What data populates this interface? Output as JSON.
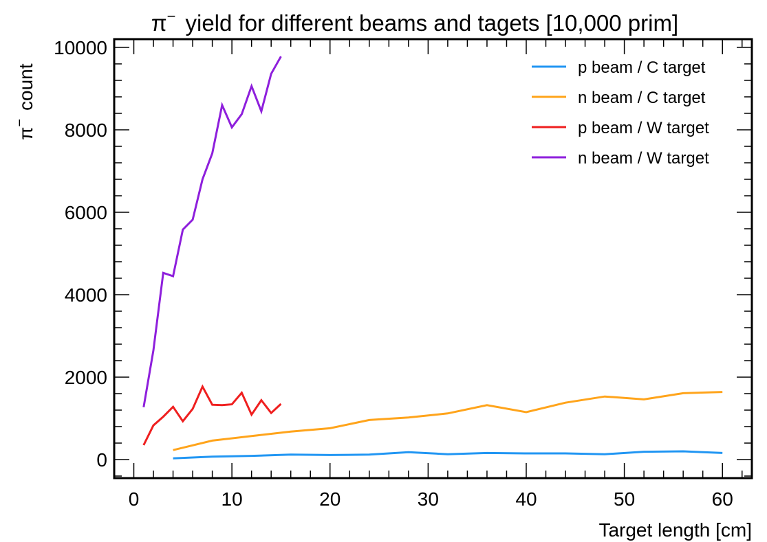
{
  "chart_data": {
    "type": "line",
    "title_prefix": "π",
    "title_sup": "−",
    "title_rest": "yield for different beams and tagets [10,000 prim]",
    "xlabel": "Target length [cm]",
    "ylabel_prefix": "π",
    "ylabel_sup": "−",
    "ylabel_rest": "count",
    "xlim": [
      -2,
      63
    ],
    "ylim": [
      -450,
      10200
    ],
    "xticks": [
      0,
      10,
      20,
      30,
      40,
      50,
      60
    ],
    "yticks": [
      0,
      2000,
      4000,
      6000,
      8000,
      10000
    ],
    "grid": false,
    "legend_position": "top-right",
    "series": [
      {
        "name": "p beam / C target",
        "color": "#2196f3",
        "x": [
          4,
          8,
          12,
          16,
          20,
          24,
          28,
          32,
          36,
          40,
          44,
          48,
          52,
          56,
          60
        ],
        "y": [
          30,
          70,
          90,
          120,
          110,
          120,
          180,
          130,
          160,
          150,
          150,
          130,
          190,
          200,
          160
        ]
      },
      {
        "name": "n beam / C target",
        "color": "#ffa41b",
        "x": [
          4,
          8,
          12,
          16,
          20,
          24,
          28,
          32,
          36,
          40,
          44,
          48,
          52,
          56,
          60
        ],
        "y": [
          230,
          460,
          570,
          680,
          760,
          960,
          1020,
          1120,
          1320,
          1150,
          1380,
          1530,
          1460,
          1610,
          1640
        ]
      },
      {
        "name": "p beam / W target",
        "color": "#ef1f1f",
        "x": [
          1,
          2,
          3,
          4,
          5,
          6,
          7,
          8,
          9,
          10,
          11,
          12,
          13,
          14,
          15
        ],
        "y": [
          350,
          830,
          1040,
          1280,
          930,
          1230,
          1770,
          1330,
          1320,
          1340,
          1620,
          1090,
          1440,
          1130,
          1350
        ]
      },
      {
        "name": "n beam / W target",
        "color": "#8e1fdc",
        "x": [
          1,
          2,
          3,
          4,
          5,
          6,
          7,
          8,
          9,
          10,
          11,
          12,
          13,
          14,
          15
        ],
        "y": [
          1270,
          2650,
          4530,
          4450,
          5580,
          5820,
          6800,
          7430,
          8600,
          8060,
          8380,
          9060,
          8450,
          9360,
          9780
        ]
      }
    ]
  }
}
